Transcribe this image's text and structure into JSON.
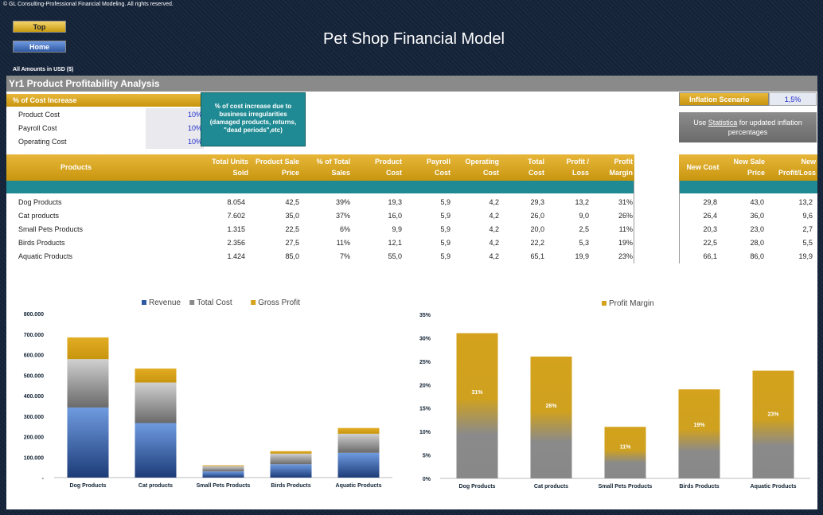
{
  "header": {
    "copyright": "© GL Consulting-Professional Financial Modeling. All rights reserved.",
    "title": "Pet Shop Financial Model",
    "top_button": "Top",
    "home_button": "Home",
    "amounts": "All Amounts in  USD ($)"
  },
  "section": {
    "title": "Yr1 Product Profitability Analysis"
  },
  "cost_increase": {
    "header": "% of Cost Increase",
    "rows": [
      {
        "label": "Product Cost",
        "value": "10%"
      },
      {
        "label": "Payroll Cost",
        "value": "10%"
      },
      {
        "label": "Operating Cost",
        "value": "10%"
      }
    ],
    "note": "% of cost increase due to business irregularities (damaged products, returns, \"dead periods\",etc)"
  },
  "inflation": {
    "label": "Inflation Scenario",
    "value": "1,5%",
    "note_prefix": "Use ",
    "note_link": "Statistica",
    "note_suffix": " for updated inflation percentages"
  },
  "table": {
    "headers": [
      "Products",
      "Total Units Sold",
      "Product Sale Price",
      "% of Total Sales",
      "Product Cost",
      "Payroll Cost",
      "Operating Cost",
      "Total Cost",
      "Profit / Loss",
      "Profit Margin"
    ],
    "rows": [
      [
        "Dog Products",
        "8.054",
        "42,5",
        "39%",
        "19,3",
        "5,9",
        "4,2",
        "29,3",
        "13,2",
        "31%"
      ],
      [
        "Cat products",
        "7.602",
        "35,0",
        "37%",
        "16,0",
        "5,9",
        "4,2",
        "26,0",
        "9,0",
        "26%"
      ],
      [
        "Small Pets Products",
        "1.315",
        "22,5",
        "6%",
        "9,9",
        "5,9",
        "4,2",
        "20,0",
        "2,5",
        "11%"
      ],
      [
        "Birds Products",
        "2.356",
        "27,5",
        "11%",
        "12,1",
        "5,9",
        "4,2",
        "22,2",
        "5,3",
        "19%"
      ],
      [
        "Aquatic Products",
        "1.424",
        "85,0",
        "7%",
        "55,0",
        "5,9",
        "4,2",
        "65,1",
        "19,9",
        "23%"
      ]
    ],
    "side_headers": [
      "New Cost",
      "New Sale Price",
      "New Profit/Loss"
    ],
    "side_rows": [
      [
        "29,8",
        "43,0",
        "13,2"
      ],
      [
        "26,4",
        "36,0",
        "9,6"
      ],
      [
        "20,3",
        "23,0",
        "2,7"
      ],
      [
        "22,5",
        "28,0",
        "5,5"
      ],
      [
        "66,1",
        "86,0",
        "19,9"
      ]
    ]
  },
  "colors": {
    "gold": "#d4a21c",
    "teal": "#1f8a93",
    "revenue": "#2f5aa3",
    "cost": "#8a8a8a",
    "background": "#142238"
  },
  "chart_data": [
    {
      "type": "bar",
      "stacked": true,
      "categories": [
        "Dog Products",
        "Cat products",
        "Small Pets Products",
        "Birds Products",
        "Aquatic Products"
      ],
      "series": [
        {
          "name": "Revenue",
          "values": [
            342000,
            266000,
            30000,
            65000,
            121000
          ]
        },
        {
          "name": "Total Cost",
          "values": [
            236000,
            198000,
            26000,
            52000,
            93000
          ]
        },
        {
          "name": "Gross Profit",
          "values": [
            106000,
            68000,
            4000,
            12000,
            28000
          ]
        }
      ],
      "ylim": [
        0,
        800000
      ],
      "yticks": [
        "-",
        "100.000",
        "200.000",
        "300.000",
        "400.000",
        "500.000",
        "600.000",
        "700.000",
        "800.000"
      ],
      "legend": "top"
    },
    {
      "type": "bar",
      "categories": [
        "Dog Products",
        "Cat products",
        "Small Pets Products",
        "Birds Products",
        "Aquatic Products"
      ],
      "series": [
        {
          "name": "Profit Margin",
          "values": [
            31,
            26,
            11,
            19,
            23
          ]
        }
      ],
      "data_labels": [
        "31%",
        "26%",
        "11%",
        "19%",
        "23%"
      ],
      "ylim": [
        0,
        35
      ],
      "yticks": [
        "0%",
        "5%",
        "10%",
        "15%",
        "20%",
        "25%",
        "30%",
        "35%"
      ],
      "legend": "top"
    }
  ]
}
